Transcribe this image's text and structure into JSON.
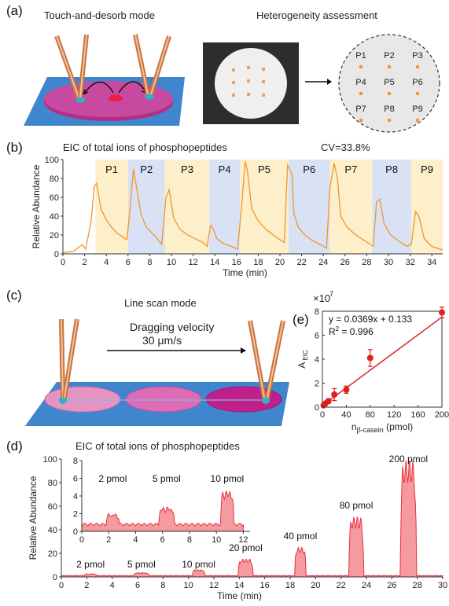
{
  "panel_a": {
    "label": "(a)",
    "title_left": "Touch-and-desorb mode",
    "title_right": "Heterogeneity assessment",
    "grid_points": [
      "P1",
      "P2",
      "P3",
      "P4",
      "P5",
      "P6",
      "P7",
      "P8",
      "P9"
    ]
  },
  "panel_b": {
    "label": "(b)",
    "title": "EIC of total ions of phosphopeptides",
    "cv": "CV=33.8%",
    "ylabel": "Relative Abundance",
    "xlabel": "Time (min)",
    "yticks": [
      "0",
      "20",
      "40",
      "60",
      "80",
      "100"
    ],
    "xticks": [
      "0",
      "2",
      "4",
      "6",
      "8",
      "10",
      "12",
      "14",
      "16",
      "18",
      "20",
      "22",
      "24",
      "26",
      "28",
      "30",
      "32",
      "34"
    ],
    "segments": [
      "P1",
      "P2",
      "P3",
      "P4",
      "P5",
      "P6",
      "P7",
      "P8",
      "P9"
    ]
  },
  "panel_c": {
    "label": "(c)",
    "title": "Line scan mode",
    "velocity_line1": "Dragging velocity",
    "velocity_line2": "30 μm/s"
  },
  "panel_e": {
    "label": "(e)",
    "exponent": "×10",
    "exponent_power": "7",
    "equation": "y = 0.0369x + 0.133",
    "r2": "R",
    "r2_sup": "2",
    "r2_value": " = 0.996",
    "ylabel_main": "A",
    "ylabel_sub": "EIC",
    "xlabel_main": "n",
    "xlabel_sub": "β-casein",
    "xlabel_unit": " (pmol)",
    "yticks": [
      "0",
      "2",
      "4",
      "6",
      "8"
    ],
    "xticks": [
      "0",
      "40",
      "80",
      "120",
      "160",
      "200"
    ]
  },
  "panel_d": {
    "label": "(d)",
    "title": "EIC of total ions of phosphopeptides",
    "ylabel": "Relative Abundance",
    "xlabel": "Time (min)",
    "yticks": [
      "0",
      "20",
      "40",
      "60",
      "80",
      "100"
    ],
    "xticks": [
      "0",
      "2",
      "4",
      "6",
      "8",
      "10",
      "12",
      "14",
      "16",
      "18",
      "20",
      "22",
      "24",
      "26",
      "28",
      "30"
    ],
    "peak_labels": [
      "2 pmol",
      "5 pmol",
      "10 pmol",
      "20 pmol",
      "40 pmol",
      "80 pmol",
      "200 pmol"
    ],
    "inset_yticks": [
      "0",
      "2",
      "4",
      "6",
      "8"
    ],
    "inset_xticks": [
      "0",
      "2",
      "4",
      "6",
      "8",
      "10",
      "12"
    ],
    "inset_labels": [
      "2 pmol",
      "5 pmol",
      "10 pmol"
    ]
  },
  "colors": {
    "accent_orange": "#f0962e",
    "band_yellow": "#fdefc9",
    "band_blue": "#d9e2f4",
    "peak_red": "#e8323c",
    "peak_fill": "#f59aa0",
    "platform_blue": "#3f86cf",
    "magenta": "#c2278c",
    "fit_red": "#e02020"
  },
  "chart_data": [
    {
      "type": "line",
      "title": "EIC of total ions of phosphopeptides",
      "xlabel": "Time (min)",
      "ylabel": "Relative Abundance",
      "xlim": [
        0,
        35
      ],
      "ylim": [
        0,
        100
      ],
      "series": [
        {
          "x": [
            0,
            1,
            1.8,
            2.1,
            2.6,
            2.9,
            3.1,
            3.5,
            4.0,
            4.5,
            5.0,
            5.5,
            5.9,
            6.2,
            6.5,
            6.8,
            7.2,
            7.7,
            8.2,
            8.7,
            9.1,
            9.5,
            9.8,
            10.2,
            10.8,
            11.5,
            12.2,
            12.9,
            13.3,
            13.6,
            13.8,
            14.2,
            14.8,
            15.5,
            16.1,
            16.5,
            16.8,
            17.0,
            17.4,
            18.0,
            18.7,
            19.5,
            20.4,
            20.7,
            21.1,
            21.3,
            21.7,
            22.3,
            23.0,
            23.7,
            24.3,
            24.6,
            25.0,
            25.3,
            25.6,
            26.2,
            27.0,
            27.8,
            28.6,
            28.9,
            29.2,
            29.6,
            30.2,
            30.9,
            31.7,
            32.1,
            32.5,
            32.8,
            33.3,
            34.0,
            35
          ],
          "y": [
            1,
            3,
            10,
            5,
            35,
            72,
            75,
            48,
            36,
            28,
            22,
            18,
            15,
            50,
            90,
            70,
            42,
            28,
            22,
            16,
            10,
            60,
            68,
            38,
            26,
            20,
            16,
            12,
            8,
            30,
            28,
            16,
            11,
            8,
            5,
            55,
            98,
            88,
            48,
            35,
            26,
            19,
            12,
            94,
            85,
            42,
            28,
            20,
            14,
            10,
            6,
            70,
            96,
            80,
            40,
            28,
            20,
            14,
            8,
            55,
            58,
            32,
            20,
            14,
            8,
            10,
            45,
            40,
            16,
            8,
            4
          ]
        }
      ],
      "segments": [
        "P1",
        "P2",
        "P3",
        "P4",
        "P5",
        "P6",
        "P7",
        "P8",
        "P9"
      ]
    },
    {
      "type": "scatter",
      "xlabel": "nβ-casein (pmol)",
      "ylabel": "AEIC",
      "xlim": [
        0,
        200
      ],
      "ylim": [
        0,
        8
      ],
      "scale_note": "×10^7",
      "fit": {
        "slope": 0.0369,
        "intercept": 0.133,
        "r2": 0.996
      },
      "series": [
        {
          "x": [
            2,
            5,
            10,
            20,
            40,
            80,
            200
          ],
          "y": [
            0.15,
            0.3,
            0.5,
            1.05,
            1.45,
            4.1,
            7.9
          ],
          "err": [
            0.1,
            0.15,
            0.2,
            0.5,
            0.3,
            0.7,
            0.45
          ]
        }
      ]
    },
    {
      "type": "area",
      "title": "EIC of total ions of phosphopeptides",
      "xlabel": "Time (min)",
      "ylabel": "Relative Abundance",
      "xlim": [
        0,
        30
      ],
      "ylim": [
        0,
        100
      ],
      "peaks": [
        {
          "label": "2 pmol",
          "center": 2.3,
          "height": 1.5,
          "width": 1.0
        },
        {
          "label": "5 pmol",
          "center": 6.3,
          "height": 2.5,
          "width": 1.2
        },
        {
          "label": "10 pmol",
          "center": 10.8,
          "height": 5,
          "width": 1.0
        },
        {
          "label": "20 pmol",
          "center": 14.5,
          "height": 14,
          "width": 1.2
        },
        {
          "label": "40 pmol",
          "center": 18.8,
          "height": 24,
          "width": 0.9
        },
        {
          "label": "80 pmol",
          "center": 23.2,
          "height": 50,
          "width": 1.2
        },
        {
          "label": "200 pmol",
          "center": 27.3,
          "height": 98,
          "width": 1.3
        }
      ]
    }
  ]
}
